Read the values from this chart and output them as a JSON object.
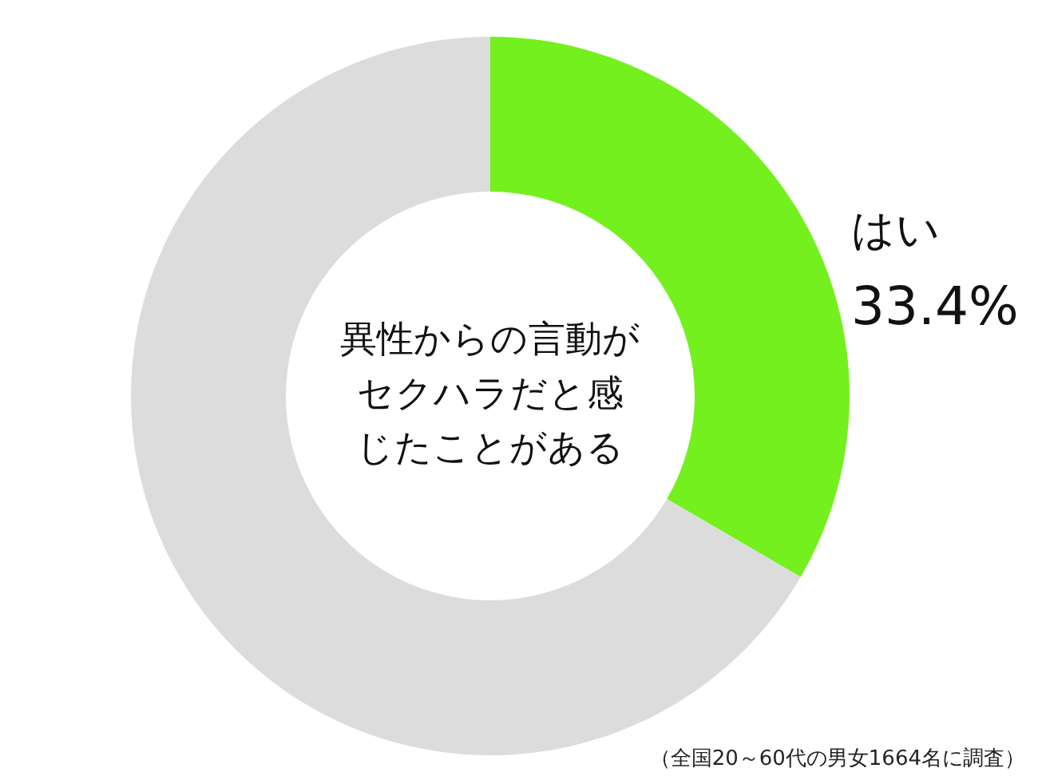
{
  "chart_data": {
    "type": "donut",
    "title": "異性からの言動がセクハラだと感じたことがある",
    "categories": [
      "はい",
      null
    ],
    "values": [
      33.4,
      66.6
    ],
    "colors": [
      "#73f01e",
      "#dcdcdc"
    ],
    "value_labels": [
      "33.4%",
      null
    ],
    "annotations": [
      "（全国20～60代の男女1664名に調査）"
    ]
  }
}
